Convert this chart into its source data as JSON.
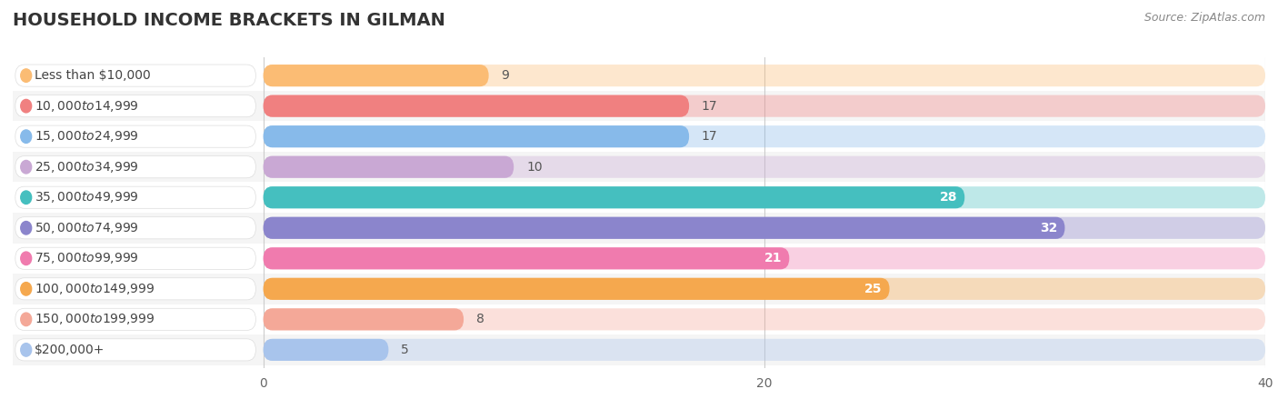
{
  "title": "HOUSEHOLD INCOME BRACKETS IN GILMAN",
  "source": "Source: ZipAtlas.com",
  "categories": [
    "Less than $10,000",
    "$10,000 to $14,999",
    "$15,000 to $24,999",
    "$25,000 to $34,999",
    "$35,000 to $49,999",
    "$50,000 to $74,999",
    "$75,000 to $99,999",
    "$100,000 to $149,999",
    "$150,000 to $199,999",
    "$200,000+"
  ],
  "values": [
    9,
    17,
    17,
    10,
    28,
    32,
    21,
    25,
    8,
    5
  ],
  "bar_colors": [
    "#FBBC74",
    "#F08080",
    "#87BAEA",
    "#C9A8D4",
    "#45BFBF",
    "#8B85CC",
    "#F07BAE",
    "#F5A84E",
    "#F4A898",
    "#A8C4EC"
  ],
  "xlim": [
    -10,
    40
  ],
  "data_xlim": [
    0,
    40
  ],
  "xticks": [
    0,
    20,
    40
  ],
  "row_colors": [
    "#ffffff",
    "#f5f5f5"
  ],
  "title_fontsize": 14,
  "label_fontsize": 10,
  "value_fontsize": 10,
  "value_threshold": 20
}
